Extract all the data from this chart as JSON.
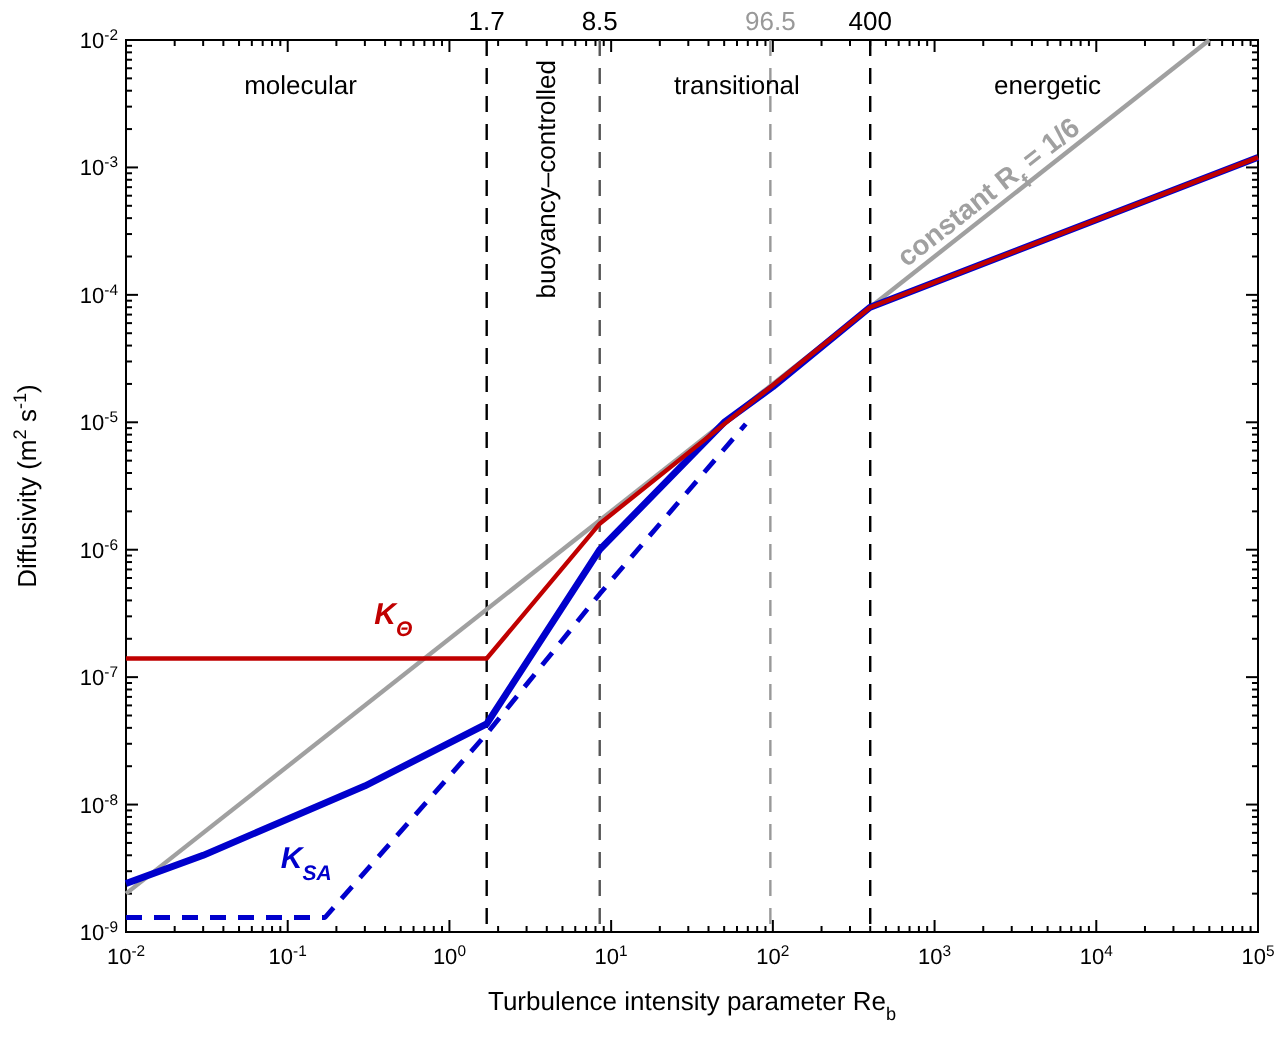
{
  "chart_data": {
    "type": "line",
    "xlabel": "Turbulence intensity parameter Re$_{b}$",
    "ylabel": "Diffusivity (m$^{2}$ s$^{-1}$)",
    "log": "xy",
    "xlim": [
      0.01,
      100000
    ],
    "ylim": [
      1e-09,
      0.01
    ],
    "xticks": [
      {
        "value": 0.01,
        "label": "10$^{-2}$"
      },
      {
        "value": 0.1,
        "label": "10$^{-1}$"
      },
      {
        "value": 1,
        "label": "10$^{0}$"
      },
      {
        "value": 10,
        "label": "10$^{1}$"
      },
      {
        "value": 100,
        "label": "10$^{2}$"
      },
      {
        "value": 1000,
        "label": "10$^{3}$"
      },
      {
        "value": 10000,
        "label": "10$^{4}$"
      },
      {
        "value": 100000,
        "label": "10$^{5}$"
      }
    ],
    "yticks": [
      {
        "value": 1e-09,
        "label": "10$^{-9}$"
      },
      {
        "value": 1e-08,
        "label": "10$^{-8}$"
      },
      {
        "value": 1e-07,
        "label": "10$^{-7}$"
      },
      {
        "value": 1e-06,
        "label": "10$^{-6}$"
      },
      {
        "value": 1e-05,
        "label": "10$^{-5}$"
      },
      {
        "value": 0.0001,
        "label": "10$^{-4}$"
      },
      {
        "value": 0.001,
        "label": "10$^{-3}$"
      },
      {
        "value": 0.01,
        "label": "10$^{-2}$"
      }
    ],
    "grid": false,
    "series": [
      {
        "name": "constant R$_{f}$ = 1/6",
        "color": "#a0a0a0",
        "x": [
          0.01,
          50000
        ],
        "values": [
          2e-09,
          0.01
        ]
      },
      {
        "name": "K$_{SA}$",
        "color": "#0000cc",
        "x": [
          0.01,
          0.03,
          0.3,
          1.7,
          8.5,
          50,
          100,
          400,
          100000
        ],
        "values": [
          2.4e-09,
          4e-09,
          1.4e-08,
          4.3e-08,
          1e-06,
          1e-05,
          1.9e-05,
          8e-05,
          0.0012
        ]
      },
      {
        "color": "#0000cc",
        "line_style": "dashed",
        "x": [
          0.01,
          0.17,
          1.7,
          8.5,
          68
        ],
        "values": [
          1.3e-09,
          1.3e-09,
          3.6e-08,
          4.5e-07,
          9.7e-06
        ]
      },
      {
        "name": "K$_{Θ}$",
        "color": "#c00000",
        "x": [
          0.01,
          1.7,
          8.5,
          400,
          100000
        ],
        "values": [
          1.4e-07,
          1.4e-07,
          1.6e-06,
          8e-05,
          0.0012
        ]
      }
    ],
    "ref_lines": [
      {
        "axis": "x",
        "value": 1.7,
        "label": "1.7",
        "color": "#000000",
        "line_style": "dashed"
      },
      {
        "axis": "x",
        "value": 8.5,
        "label": "8.5",
        "color": "#555555",
        "line_style": "dashed"
      },
      {
        "axis": "x",
        "value": 96.5,
        "label": "96.5",
        "color": "#999999",
        "line_style": "dashed"
      },
      {
        "axis": "x",
        "value": 400,
        "label": "400",
        "color": "#000000",
        "line_style": "dashed"
      }
    ],
    "annotations": [
      "molecular",
      "buoyancy–controlled",
      "transitional",
      "energetic"
    ]
  }
}
